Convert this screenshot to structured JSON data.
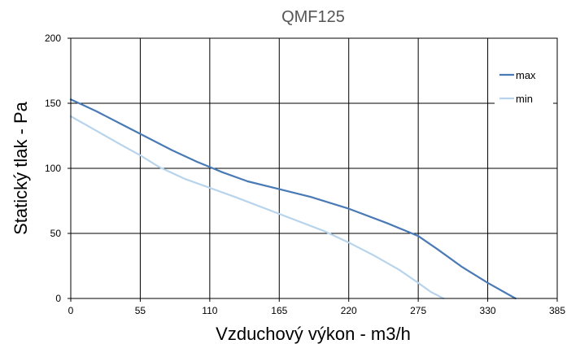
{
  "chart_data": {
    "type": "line",
    "title": "QMF125",
    "xlabel": "Vzduchový výkon - m3/h",
    "ylabel": "Statický tlak - Pa",
    "xlim": [
      0,
      385
    ],
    "ylim": [
      0,
      200
    ],
    "xticks": [
      0,
      55,
      110,
      165,
      220,
      275,
      330,
      385
    ],
    "yticks": [
      0,
      50,
      100,
      150,
      200
    ],
    "grid": true,
    "legend_position": "top-right",
    "series": [
      {
        "name": "max",
        "color": "#4a7ab5",
        "x": [
          0,
          20,
          40,
          60,
          80,
          100,
          110,
          120,
          140,
          165,
          190,
          220,
          250,
          275,
          290,
          310,
          330,
          352
        ],
        "y": [
          153,
          144,
          134,
          124,
          114,
          105,
          101,
          97,
          90,
          84,
          78,
          69,
          58,
          48,
          38,
          24,
          12,
          0
        ]
      },
      {
        "name": "min",
        "color": "#b8d4ec",
        "x": [
          0,
          20,
          40,
          55,
          70,
          90,
          110,
          130,
          165,
          200,
          220,
          240,
          260,
          275,
          285,
          295
        ],
        "y": [
          140,
          129,
          118,
          110,
          101,
          92,
          85,
          78,
          65,
          52,
          43,
          33,
          22,
          12,
          5,
          0
        ]
      }
    ]
  }
}
